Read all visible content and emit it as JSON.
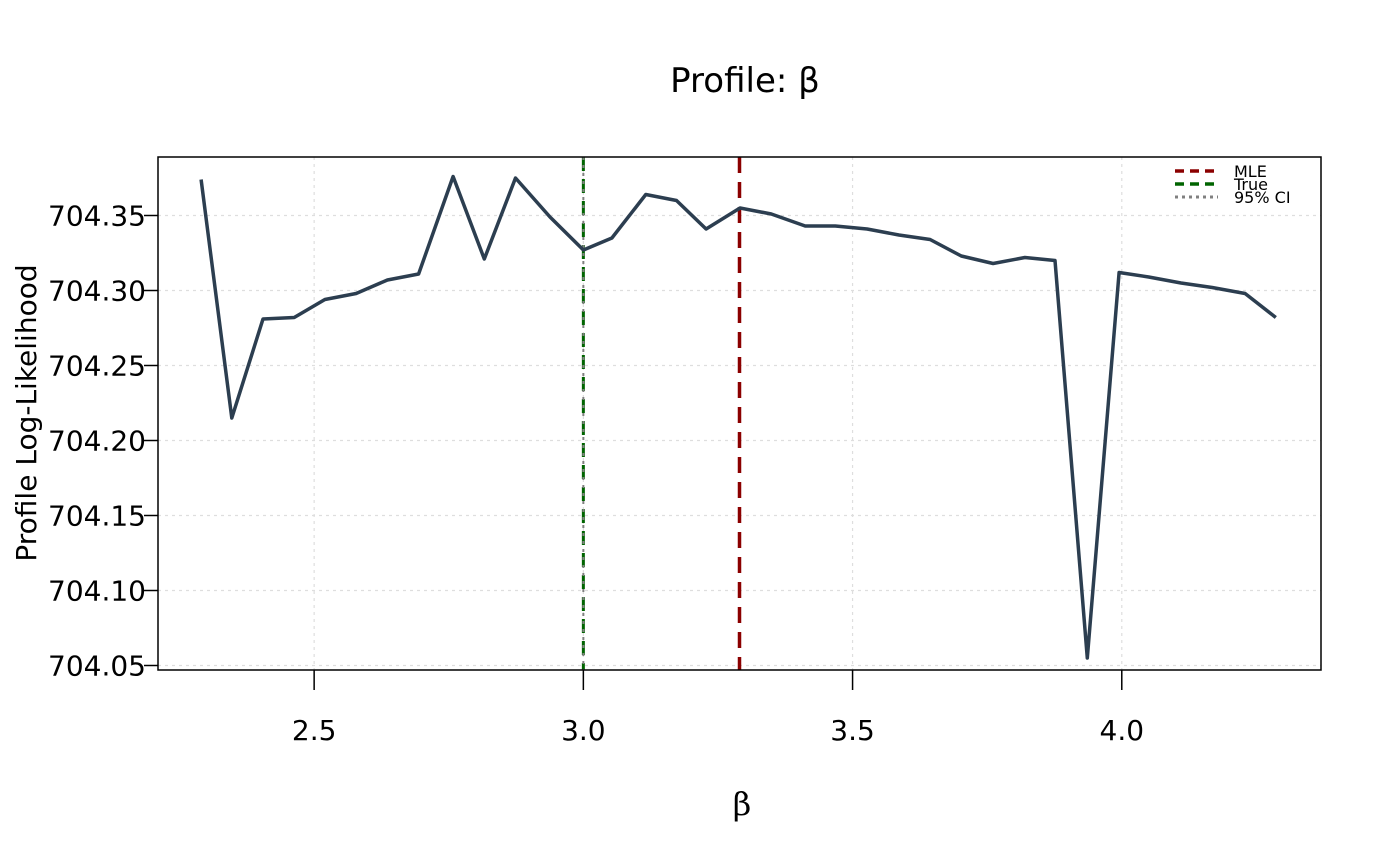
{
  "chart_data": {
    "type": "line",
    "title": "Profile: β",
    "xlabel": "β",
    "ylabel": "Profile Log-Likelihood",
    "xlim": [
      2.21,
      4.37
    ],
    "ylim": [
      704.047,
      704.389
    ],
    "x_ticks": [
      2.5,
      3.0,
      3.5,
      4.0
    ],
    "x_tick_labels": [
      "2.5",
      "3.0",
      "3.5",
      "4.0"
    ],
    "y_ticks": [
      704.05,
      704.1,
      704.15,
      704.2,
      704.25,
      704.3,
      704.35
    ],
    "y_tick_labels": [
      "704.05",
      "704.10",
      "704.15",
      "704.20",
      "704.25",
      "704.30",
      "704.35"
    ],
    "grid": true,
    "legend_position": "top-right",
    "series": [
      {
        "x": [
          2.29,
          2.347,
          2.405,
          2.463,
          2.52,
          2.578,
          2.636,
          2.694,
          2.758,
          2.816,
          2.874,
          2.938,
          3.0,
          3.053,
          3.116,
          3.173,
          3.228,
          3.291,
          3.349,
          3.412,
          3.468,
          3.527,
          3.586,
          3.644,
          3.702,
          3.761,
          3.82,
          3.876,
          3.936,
          3.995,
          4.05,
          4.11,
          4.168,
          4.229,
          4.286
        ],
        "y": [
          704.374,
          704.215,
          704.281,
          704.282,
          704.294,
          704.298,
          704.307,
          704.311,
          704.376,
          704.321,
          704.375,
          704.349,
          704.327,
          704.335,
          704.364,
          704.36,
          704.341,
          704.355,
          704.351,
          704.343,
          704.343,
          704.341,
          704.337,
          704.334,
          704.323,
          704.318,
          704.322,
          704.32,
          704.055,
          704.312,
          704.309,
          704.305,
          704.302,
          704.298,
          704.282
        ]
      }
    ],
    "vlines": [
      {
        "name": "MLE",
        "x": 3.29
      },
      {
        "name": "True",
        "x": 3.0
      },
      {
        "name": "95% CI",
        "x": 3.0
      }
    ],
    "legend": [
      "MLE",
      "True",
      "95% CI"
    ],
    "colors": {
      "line": "#2c3e50",
      "mle": "#8b0000",
      "true": "#006400",
      "ci": "#808080",
      "grid": "#dedede"
    }
  }
}
